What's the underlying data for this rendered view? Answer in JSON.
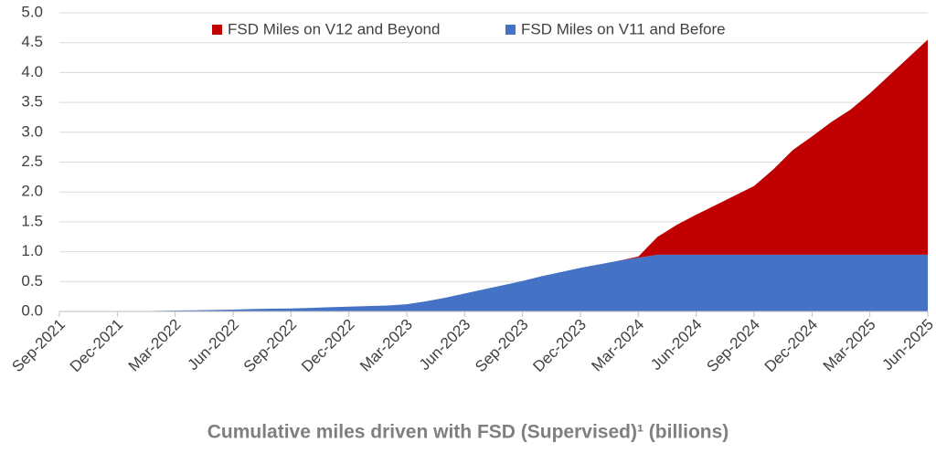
{
  "chart_data": {
    "type": "stacked-area",
    "title": "Cumulative miles driven with FSD (Supervised)¹ (billions)",
    "categories": [
      "Sep-2021",
      null,
      null,
      "Dec-2021",
      null,
      null,
      "Mar-2022",
      null,
      null,
      "Jun-2022",
      null,
      null,
      "Sep-2022",
      null,
      null,
      "Dec-2022",
      null,
      null,
      "Mar-2023",
      null,
      null,
      "Jun-2023",
      null,
      null,
      "Sep-2023",
      null,
      null,
      "Dec-2023",
      null,
      null,
      "Mar-2024",
      null,
      null,
      "Jun-2024",
      null,
      null,
      "Sep-2024",
      null,
      null,
      "Dec-2024",
      null,
      null,
      "Mar-2025",
      null,
      null,
      "Jun-2025"
    ],
    "series": [
      {
        "name": "FSD Miles on V11 and Before",
        "color": "#4472c4",
        "values": [
          0,
          0,
          0,
          0.002,
          0.005,
          0.01,
          0.015,
          0.02,
          0.025,
          0.03,
          0.04,
          0.045,
          0.05,
          0.06,
          0.07,
          0.08,
          0.09,
          0.1,
          0.12,
          0.17,
          0.23,
          0.3,
          0.37,
          0.44,
          0.51,
          0.59,
          0.66,
          0.73,
          0.79,
          0.85,
          0.9,
          0.95,
          0.95,
          0.95,
          0.95,
          0.95,
          0.95,
          0.95,
          0.95,
          0.95,
          0.95,
          0.95,
          0.95,
          0.95,
          0.95,
          0.95
        ]
      },
      {
        "name": "FSD Miles on V12 and Beyond",
        "color": "#c00000",
        "values": [
          0,
          0,
          0,
          0,
          0,
          0,
          0,
          0,
          0,
          0,
          0,
          0,
          0,
          0,
          0,
          0,
          0,
          0,
          0,
          0,
          0,
          0,
          0,
          0,
          0,
          0,
          0,
          0,
          0,
          0,
          0.02,
          0.3,
          0.5,
          0.67,
          0.83,
          0.99,
          1.15,
          1.43,
          1.75,
          1.98,
          2.22,
          2.43,
          2.7,
          3.0,
          3.3,
          3.6
        ]
      }
    ],
    "ylim": [
      0,
      5
    ],
    "yticks": [
      {
        "value": 0,
        "label": "0.0"
      },
      {
        "value": 0.5,
        "label": "0.5"
      },
      {
        "value": 1,
        "label": "1.0"
      },
      {
        "value": 1.5,
        "label": "1.5"
      },
      {
        "value": 2,
        "label": "2.0"
      },
      {
        "value": 2.5,
        "label": "2.5"
      },
      {
        "value": 3,
        "label": "3.0"
      },
      {
        "value": 3.5,
        "label": "3.5"
      },
      {
        "value": 4,
        "label": "4.0"
      },
      {
        "value": 4.5,
        "label": "4.5"
      },
      {
        "value": 5,
        "label": "5.0"
      }
    ],
    "grid": true,
    "legend": "top"
  }
}
